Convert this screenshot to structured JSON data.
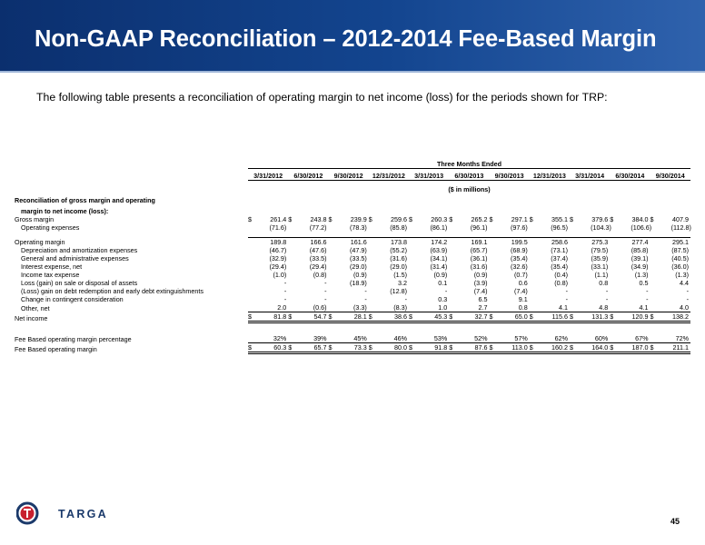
{
  "title": "Non-GAAP Reconciliation – 2012-2014 Fee-Based Margin",
  "subtitle": "The following table presents a reconciliation of operating margin to net income (loss) for the periods shown for TRP:",
  "header": {
    "period_group": "Three Months Ended",
    "units": "($ in millions)",
    "periods": [
      "3/31/2012",
      "6/30/2012",
      "9/30/2012",
      "12/31/2012",
      "3/31/2013",
      "6/30/2013",
      "9/30/2013",
      "12/31/2013",
      "3/31/2014",
      "6/30/2014",
      "9/30/2014"
    ]
  },
  "sections": {
    "recon_line1": "Reconciliation of gross margin and operating",
    "recon_line2": "margin to net income (loss):"
  },
  "currency_symbol": "$",
  "rows": {
    "gross_margin": {
      "label": "Gross margin",
      "values": [
        "261.4",
        "243.8",
        "239.9",
        "259.6",
        "260.3",
        "265.2",
        "297.1",
        "355.1",
        "379.6",
        "384.0",
        "407.9"
      ]
    },
    "operating_expenses": {
      "label": "Operating expenses",
      "values": [
        "(71.6)",
        "(77.2)",
        "(78.3)",
        "(85.8)",
        "(86.1)",
        "(96.1)",
        "(97.6)",
        "(96.5)",
        "(104.3)",
        "(106.6)",
        "(112.8)"
      ]
    },
    "operating_margin": {
      "label": "Operating margin",
      "values": [
        "189.8",
        "166.6",
        "161.6",
        "173.8",
        "174.2",
        "169.1",
        "199.5",
        "258.6",
        "275.3",
        "277.4",
        "295.1"
      ]
    },
    "depreciation": {
      "label": "Depreciation and amortization expenses",
      "values": [
        "(46.7)",
        "(47.6)",
        "(47.9)",
        "(55.2)",
        "(63.9)",
        "(65.7)",
        "(68.9)",
        "(73.1)",
        "(79.5)",
        "(85.8)",
        "(87.5)"
      ]
    },
    "g_and_a": {
      "label": "General and administrative expenses",
      "values": [
        "(32.9)",
        "(33.5)",
        "(33.5)",
        "(31.6)",
        "(34.1)",
        "(36.1)",
        "(35.4)",
        "(37.4)",
        "(35.9)",
        "(39.1)",
        "(40.5)"
      ]
    },
    "interest": {
      "label": "Interest expense, net",
      "values": [
        "(29.4)",
        "(29.4)",
        "(29.0)",
        "(29.0)",
        "(31.4)",
        "(31.6)",
        "(32.6)",
        "(35.4)",
        "(33.1)",
        "(34.9)",
        "(36.0)"
      ]
    },
    "income_tax": {
      "label": "Income tax expense",
      "values": [
        "(1.0)",
        "(0.8)",
        "(0.9)",
        "(1.5)",
        "(0.9)",
        "(0.9)",
        "(0.7)",
        "(0.4)",
        "(1.1)",
        "(1.3)",
        "(1.3)"
      ]
    },
    "loss_gain_sale": {
      "label": "Loss (gain) on sale or disposal of assets",
      "values": [
        "-",
        "-",
        "(18.9)",
        "3.2",
        "0.1",
        "(3.9)",
        "0.6",
        "(0.8)",
        "0.8",
        "0.5",
        "4.4"
      ]
    },
    "debt_extinguish": {
      "label": "(Loss) gain on debt redemption and early debt extinguishments",
      "values": [
        "-",
        "-",
        "-",
        "(12.8)",
        "-",
        "(7.4)",
        "(7.4)",
        "-",
        "-",
        "-",
        "-"
      ]
    },
    "contingent": {
      "label": "Change in contingent consideration",
      "values": [
        "-",
        "-",
        "-",
        "-",
        "0.3",
        "6.5",
        "9.1",
        "-",
        "-",
        "-",
        "-"
      ]
    },
    "other_net": {
      "label": "Other, net",
      "values": [
        "2.0",
        "(0.6)",
        "(3.3)",
        "(8.3)",
        "1.0",
        "2.7",
        "0.8",
        "4.1",
        "4.8",
        "4.1",
        "4.0"
      ]
    },
    "net_income": {
      "label": "Net income",
      "values": [
        "81.8",
        "54.7",
        "28.1",
        "38.6",
        "45.3",
        "32.7",
        "65.0",
        "115.6",
        "131.3",
        "120.9",
        "138.2"
      ]
    },
    "fee_pct": {
      "label": "Fee Based operating margin percentage",
      "values": [
        "32%",
        "39%",
        "45%",
        "46%",
        "53%",
        "52%",
        "57%",
        "62%",
        "60%",
        "67%",
        "72%"
      ]
    },
    "fee_margin": {
      "label": "Fee Based operating margin",
      "values": [
        "60.3",
        "65.7",
        "73.3",
        "80.0",
        "91.8",
        "87.6",
        "113.0",
        "160.2",
        "164.0",
        "187.0",
        "211.1"
      ]
    }
  },
  "footer": {
    "logo_text": "TARGA",
    "page_number": "45"
  },
  "colors": {
    "banner_dark": "#0b2f6e",
    "banner_light": "#2f62ad",
    "logo_blue": "#1b3a6b",
    "logo_red": "#c8202f"
  }
}
